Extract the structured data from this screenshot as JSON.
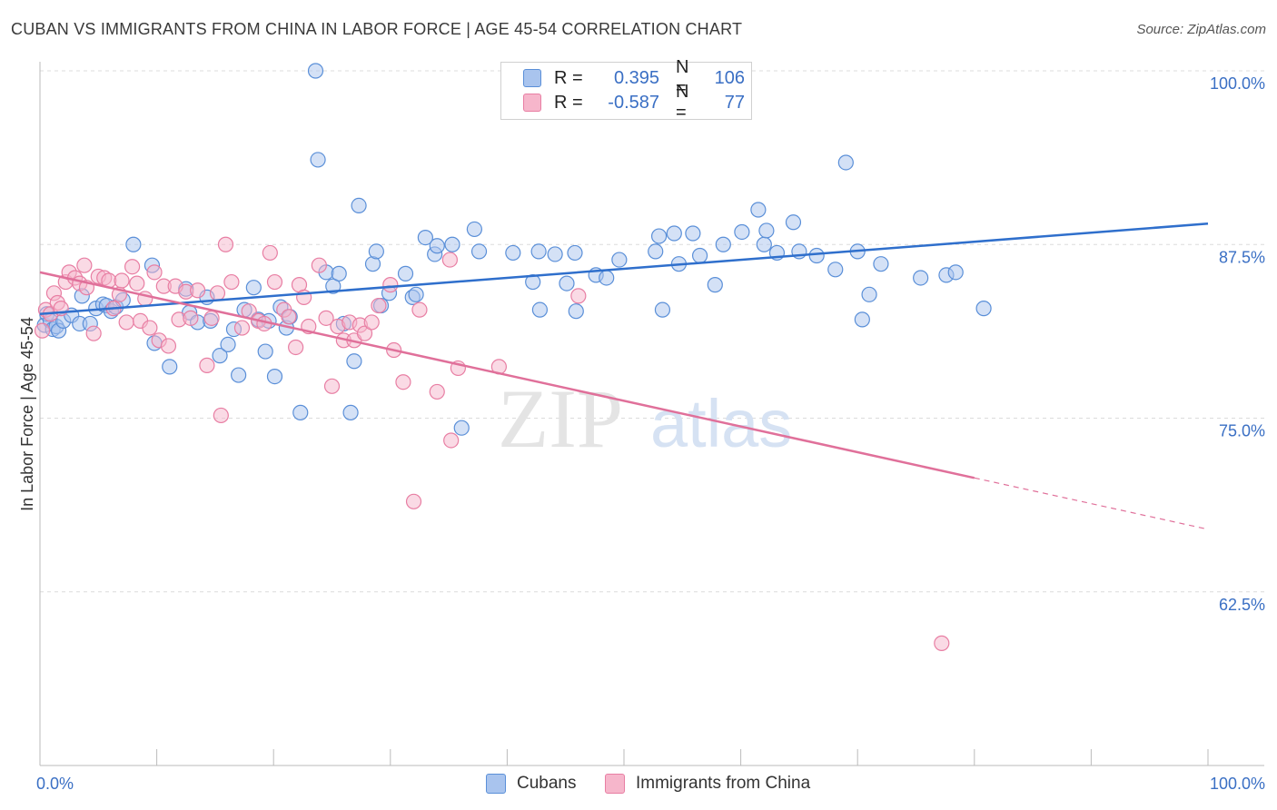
{
  "title": "CUBAN VS IMMIGRANTS FROM CHINA IN LABOR FORCE | AGE 45-54 CORRELATION CHART",
  "source": "Source: ZipAtlas.com",
  "watermark": {
    "zip": "ZIP",
    "atlas": "atlas"
  },
  "legend": {
    "rows": [
      {
        "r_label": "R =",
        "r_value": "0.395",
        "n_label": "N =",
        "n_value": "106"
      },
      {
        "r_label": "R =",
        "r_value": "-0.587",
        "n_label": "N =",
        "n_value": "77"
      }
    ],
    "items": [
      "Cubans",
      "Immigrants from China"
    ]
  },
  "colors": {
    "cubans_fill": "#a9c4ee",
    "cubans_stroke": "#5a8fd8",
    "cubans_line": "#2f6fcc",
    "china_fill": "#f6b6cb",
    "china_stroke": "#e87ea3",
    "china_line": "#e0709a",
    "tick_label": "#3a6fc4",
    "grid": "#dcdcdc"
  },
  "chart_data": {
    "type": "scatter",
    "title": "CUBAN VS IMMIGRANTS FROM CHINA IN LABOR FORCE | AGE 45-54 CORRELATION CHART",
    "xlabel": "",
    "ylabel": "In Labor Force | Age 45-54",
    "xlim": [
      0,
      100
    ],
    "ylim": [
      50,
      100
    ],
    "x_tick_labels": [
      "0.0%",
      "100.0%"
    ],
    "y_ticks": [
      62.5,
      75,
      87.5,
      100
    ],
    "y_tick_labels": [
      "62.5%",
      "75.0%",
      "87.5%",
      "100.0%"
    ],
    "grid": true,
    "series": [
      {
        "name": "Cubans",
        "r": 0.395,
        "n": 106,
        "trend": {
          "x": [
            0,
            100
          ],
          "y": [
            82.5,
            89.0
          ],
          "dashed_from": null
        },
        "points": [
          [
            0.4,
            81.7
          ],
          [
            0.6,
            82.5
          ],
          [
            0.9,
            82.0
          ],
          [
            1.1,
            81.4
          ],
          [
            1.4,
            81.6
          ],
          [
            1.6,
            81.3
          ],
          [
            2.0,
            82.0
          ],
          [
            2.7,
            82.4
          ],
          [
            3.4,
            81.8
          ],
          [
            3.6,
            83.8
          ],
          [
            4.3,
            81.8
          ],
          [
            4.8,
            82.9
          ],
          [
            5.4,
            83.2
          ],
          [
            5.7,
            83.1
          ],
          [
            6.1,
            82.7
          ],
          [
            6.5,
            83.0
          ],
          [
            7.1,
            83.5
          ],
          [
            8.0,
            87.5
          ],
          [
            9.6,
            86.0
          ],
          [
            9.8,
            80.4
          ],
          [
            11.1,
            78.7
          ],
          [
            12.5,
            84.3
          ],
          [
            12.8,
            82.6
          ],
          [
            13.5,
            81.9
          ],
          [
            14.3,
            83.7
          ],
          [
            14.6,
            82.0
          ],
          [
            15.4,
            79.5
          ],
          [
            16.1,
            80.3
          ],
          [
            16.6,
            81.4
          ],
          [
            17.0,
            78.1
          ],
          [
            17.5,
            82.8
          ],
          [
            18.3,
            84.4
          ],
          [
            18.7,
            82.1
          ],
          [
            19.3,
            79.8
          ],
          [
            19.6,
            82.0
          ],
          [
            20.1,
            78.0
          ],
          [
            20.6,
            83.0
          ],
          [
            21.1,
            81.5
          ],
          [
            21.4,
            82.3
          ],
          [
            22.3,
            75.4
          ],
          [
            23.6,
            100.0
          ],
          [
            23.8,
            93.6
          ],
          [
            24.5,
            85.5
          ],
          [
            25.1,
            84.5
          ],
          [
            25.6,
            85.4
          ],
          [
            26.0,
            81.8
          ],
          [
            26.6,
            75.4
          ],
          [
            26.9,
            79.1
          ],
          [
            27.3,
            90.3
          ],
          [
            28.5,
            86.1
          ],
          [
            28.8,
            87.0
          ],
          [
            29.2,
            83.1
          ],
          [
            29.9,
            84.0
          ],
          [
            31.3,
            85.4
          ],
          [
            31.9,
            83.7
          ],
          [
            32.2,
            83.9
          ],
          [
            33.0,
            88.0
          ],
          [
            33.8,
            86.8
          ],
          [
            34.0,
            87.4
          ],
          [
            35.3,
            87.5
          ],
          [
            36.1,
            74.3
          ],
          [
            37.2,
            88.6
          ],
          [
            37.6,
            87.0
          ],
          [
            40.5,
            86.9
          ],
          [
            42.2,
            84.8
          ],
          [
            42.7,
            87.0
          ],
          [
            42.8,
            82.8
          ],
          [
            44.1,
            86.8
          ],
          [
            45.1,
            84.7
          ],
          [
            45.8,
            86.9
          ],
          [
            45.9,
            82.7
          ],
          [
            47.6,
            85.3
          ],
          [
            48.5,
            85.1
          ],
          [
            49.6,
            86.4
          ],
          [
            52.7,
            87.0
          ],
          [
            53.0,
            88.1
          ],
          [
            53.3,
            82.8
          ],
          [
            54.3,
            88.3
          ],
          [
            54.7,
            86.1
          ],
          [
            55.9,
            88.3
          ],
          [
            56.5,
            86.7
          ],
          [
            57.8,
            84.6
          ],
          [
            58.5,
            87.5
          ],
          [
            60.1,
            88.4
          ],
          [
            61.5,
            90.0
          ],
          [
            62.0,
            87.5
          ],
          [
            62.2,
            88.5
          ],
          [
            63.1,
            86.9
          ],
          [
            64.5,
            89.1
          ],
          [
            65.0,
            87.0
          ],
          [
            66.5,
            86.7
          ],
          [
            68.1,
            85.7
          ],
          [
            69.0,
            93.4
          ],
          [
            70.0,
            87.0
          ],
          [
            70.4,
            82.1
          ],
          [
            71.0,
            83.9
          ],
          [
            72.0,
            86.1
          ],
          [
            75.4,
            85.1
          ],
          [
            77.6,
            85.3
          ],
          [
            78.4,
            85.5
          ],
          [
            80.8,
            82.9
          ]
        ]
      },
      {
        "name": "Immigrants from China",
        "r": -0.587,
        "n": 77,
        "trend": {
          "x": [
            0,
            100
          ],
          "y": [
            85.5,
            67.0
          ],
          "dashed_from": 80
        },
        "points": [
          [
            0.2,
            81.3
          ],
          [
            0.5,
            82.8
          ],
          [
            0.9,
            82.5
          ],
          [
            1.2,
            84.0
          ],
          [
            1.5,
            83.3
          ],
          [
            1.8,
            82.9
          ],
          [
            2.2,
            84.8
          ],
          [
            2.5,
            85.5
          ],
          [
            3.0,
            85.1
          ],
          [
            3.4,
            84.7
          ],
          [
            3.8,
            86.0
          ],
          [
            4.0,
            84.4
          ],
          [
            4.6,
            81.1
          ],
          [
            5.0,
            85.2
          ],
          [
            5.5,
            85.1
          ],
          [
            5.9,
            84.9
          ],
          [
            6.3,
            82.9
          ],
          [
            6.8,
            83.9
          ],
          [
            7.0,
            84.9
          ],
          [
            7.4,
            81.9
          ],
          [
            7.9,
            85.9
          ],
          [
            8.3,
            84.7
          ],
          [
            8.6,
            82.0
          ],
          [
            9.0,
            83.6
          ],
          [
            9.4,
            81.5
          ],
          [
            9.8,
            85.5
          ],
          [
            10.2,
            80.6
          ],
          [
            10.6,
            84.5
          ],
          [
            11.0,
            80.2
          ],
          [
            11.6,
            84.5
          ],
          [
            11.9,
            82.1
          ],
          [
            12.5,
            84.1
          ],
          [
            12.9,
            82.2
          ],
          [
            13.5,
            84.2
          ],
          [
            14.3,
            78.8
          ],
          [
            14.7,
            82.2
          ],
          [
            15.2,
            84.0
          ],
          [
            15.5,
            75.2
          ],
          [
            15.9,
            87.5
          ],
          [
            16.4,
            84.8
          ],
          [
            17.3,
            81.5
          ],
          [
            17.9,
            82.7
          ],
          [
            18.7,
            82.0
          ],
          [
            19.2,
            81.8
          ],
          [
            19.7,
            86.9
          ],
          [
            20.1,
            84.8
          ],
          [
            20.9,
            82.8
          ],
          [
            21.3,
            82.3
          ],
          [
            21.9,
            80.1
          ],
          [
            22.2,
            84.6
          ],
          [
            22.6,
            83.7
          ],
          [
            23.0,
            81.6
          ],
          [
            23.9,
            86.0
          ],
          [
            24.5,
            82.2
          ],
          [
            25.0,
            77.3
          ],
          [
            25.5,
            81.6
          ],
          [
            26.0,
            80.6
          ],
          [
            26.5,
            81.9
          ],
          [
            26.9,
            80.6
          ],
          [
            27.4,
            81.7
          ],
          [
            27.8,
            81.1
          ],
          [
            28.4,
            81.9
          ],
          [
            29.0,
            83.1
          ],
          [
            30.0,
            84.6
          ],
          [
            30.3,
            79.9
          ],
          [
            31.1,
            77.6
          ],
          [
            32.0,
            69.0
          ],
          [
            32.5,
            82.8
          ],
          [
            34.0,
            76.9
          ],
          [
            35.1,
            86.4
          ],
          [
            35.2,
            73.4
          ],
          [
            35.8,
            78.6
          ],
          [
            39.3,
            78.7
          ],
          [
            46.1,
            83.8
          ],
          [
            77.2,
            58.8
          ]
        ]
      }
    ]
  }
}
